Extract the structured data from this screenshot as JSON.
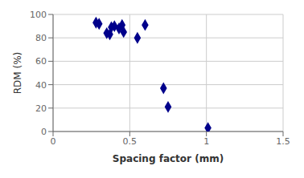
{
  "chart_data": {
    "type": "scatter",
    "x": [
      0.28,
      0.3,
      0.35,
      0.37,
      0.38,
      0.4,
      0.43,
      0.45,
      0.46,
      0.55,
      0.6,
      0.72,
      0.75,
      1.01
    ],
    "values": [
      93,
      92,
      84,
      83,
      89,
      90,
      88,
      91,
      85,
      80,
      91,
      37,
      21,
      3
    ],
    "color": "#00008B",
    "marker": "diamond",
    "xlabel": "Spacing factor (mm)",
    "ylabel": "RDM (%)",
    "xlim": [
      0,
      1.5
    ],
    "ylim": [
      0,
      100
    ],
    "xticks": [
      0,
      0.5,
      1.0,
      1.5
    ],
    "yticks": [
      0,
      20,
      40,
      60,
      80,
      100
    ],
    "grid": true
  }
}
